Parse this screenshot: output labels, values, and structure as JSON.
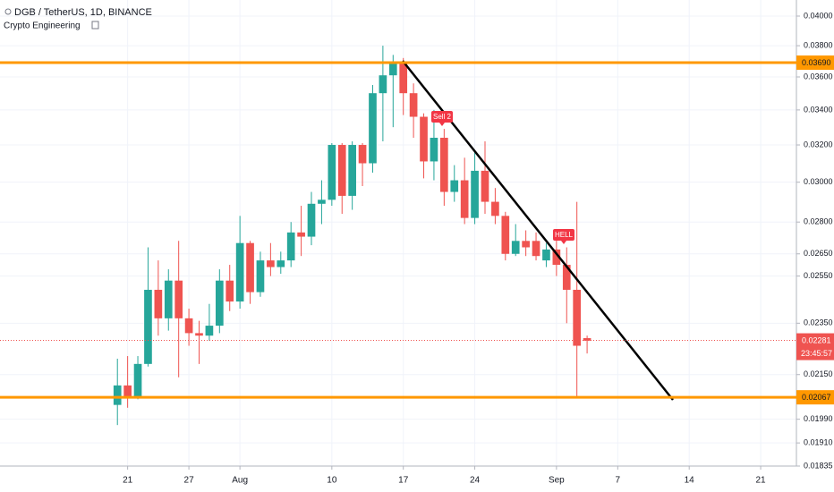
{
  "chart_data": {
    "type": "candlestick",
    "title": "DGB / TetherUS, 1D, BINANCE",
    "subtitle": "Crypto Engineering",
    "log_scale": true,
    "grid": true,
    "up_color": "#26a69a",
    "down_color": "#ef5350",
    "level_color": "#ff9800",
    "categories": [
      null,
      null,
      null,
      null,
      null,
      null,
      null,
      null,
      null,
      null,
      null,
      null,
      "21",
      null,
      null,
      null,
      null,
      null,
      "27",
      null,
      null,
      null,
      null,
      "Aug",
      null,
      null,
      null,
      null,
      null,
      null,
      null,
      null,
      "10",
      null,
      null,
      null,
      null,
      null,
      null,
      "17",
      null,
      null,
      null,
      null,
      null,
      null,
      "24",
      null,
      null,
      null,
      null,
      null,
      null,
      null,
      "Sep",
      null,
      null,
      null,
      null,
      null,
      "7",
      null,
      null,
      null,
      null,
      null,
      null,
      "14",
      null,
      null,
      null,
      null,
      null,
      null,
      "21",
      null,
      null,
      null
    ],
    "open": [
      null,
      null,
      null,
      null,
      null,
      null,
      null,
      null,
      null,
      null,
      null,
      0.0204,
      0.0211,
      0.0207,
      0.0219,
      0.0249,
      0.0237,
      0.0253,
      0.0237,
      0.0231,
      0.023,
      0.0234,
      0.0253,
      0.0244,
      0.027,
      0.0248,
      0.0262,
      0.0259,
      0.0262,
      0.0275,
      0.0273,
      0.0289,
      0.0291,
      0.032,
      0.0293,
      0.032,
      0.031,
      0.035,
      0.0361,
      0.0369,
      0.035,
      0.0336,
      0.0311,
      0.0324,
      0.0295,
      0.0301,
      0.0282,
      0.0306,
      0.029,
      0.0283,
      0.0265,
      0.0271,
      0.0271,
      0.0262,
      0.0267,
      0.026,
      0.0249,
      0.0229,
      null,
      null,
      null,
      null,
      null,
      null,
      null,
      null,
      null,
      null,
      null,
      null,
      null,
      null,
      null,
      null,
      null,
      null,
      null,
      null
    ],
    "high": [
      null,
      null,
      null,
      null,
      null,
      null,
      null,
      null,
      null,
      null,
      null,
      0.0221,
      0.0222,
      0.0222,
      0.0268,
      0.0262,
      0.0258,
      0.0271,
      0.0241,
      0.0236,
      0.0243,
      0.0258,
      0.026,
      0.0283,
      0.0271,
      0.0266,
      0.027,
      0.0266,
      0.028,
      0.0288,
      0.0295,
      0.0301,
      0.0321,
      0.0321,
      0.0322,
      0.0321,
      0.0355,
      0.038,
      0.0374,
      0.0372,
      0.0356,
      0.0338,
      0.034,
      0.0329,
      0.0309,
      0.0313,
      0.0316,
      0.0322,
      0.0297,
      0.0285,
      0.0279,
      0.0276,
      0.0275,
      0.027,
      0.0272,
      0.0268,
      0.029,
      0.023,
      null,
      null,
      null,
      null,
      null,
      null,
      null,
      null,
      null,
      null,
      null,
      null,
      null,
      null,
      null,
      null,
      null,
      null,
      null,
      null
    ],
    "low": [
      null,
      null,
      null,
      null,
      null,
      null,
      null,
      null,
      null,
      null,
      null,
      0.0197,
      0.0203,
      0.0206,
      0.0218,
      0.023,
      0.0232,
      0.0214,
      0.0226,
      0.0219,
      0.0228,
      0.0231,
      0.024,
      0.0241,
      0.0243,
      0.0246,
      0.0255,
      0.0256,
      0.0259,
      0.0264,
      0.0269,
      0.0279,
      0.0288,
      0.0284,
      0.0286,
      0.0298,
      0.0305,
      0.0322,
      0.033,
      0.0337,
      0.0324,
      0.0302,
      0.0301,
      0.0288,
      0.029,
      0.0279,
      0.0279,
      0.0284,
      0.0279,
      0.0262,
      0.0264,
      0.0264,
      0.0262,
      0.0259,
      0.0255,
      0.0235,
      0.0207,
      0.0223,
      null,
      null,
      null,
      null,
      null,
      null,
      null,
      null,
      null,
      null,
      null,
      null,
      null,
      null,
      null,
      null,
      null,
      null,
      null,
      null
    ],
    "close": [
      null,
      null,
      null,
      null,
      null,
      null,
      null,
      null,
      null,
      null,
      null,
      0.0211,
      0.0207,
      0.0219,
      0.0249,
      0.0237,
      0.0253,
      0.0237,
      0.0231,
      0.023,
      0.0234,
      0.0253,
      0.0244,
      0.027,
      0.0248,
      0.0262,
      0.0259,
      0.0262,
      0.0275,
      0.0273,
      0.0289,
      0.0291,
      0.032,
      0.0293,
      0.032,
      0.031,
      0.035,
      0.0361,
      0.0369,
      0.035,
      0.0336,
      0.0311,
      0.0324,
      0.0295,
      0.0301,
      0.0282,
      0.0306,
      0.029,
      0.0283,
      0.0265,
      0.0271,
      0.0268,
      0.0264,
      0.0267,
      0.026,
      0.0249,
      0.0226,
      0.0228,
      null,
      null,
      null,
      null,
      null,
      null,
      null,
      null,
      null,
      null,
      null,
      null,
      null,
      null,
      null,
      null,
      null,
      null,
      null,
      null
    ],
    "ylim": [
      0.01835,
      0.04113
    ],
    "yticks": [
      {
        "value": 0.04,
        "label": "0.04000"
      },
      {
        "value": 0.038,
        "label": "0.03800"
      },
      {
        "value": 0.036,
        "label": "0.03600"
      },
      {
        "value": 0.034,
        "label": "0.03400"
      },
      {
        "value": 0.032,
        "label": "0.03200"
      },
      {
        "value": 0.03,
        "label": "0.03000"
      },
      {
        "value": 0.028,
        "label": "0.02800"
      },
      {
        "value": 0.0265,
        "label": "0.02650"
      },
      {
        "value": 0.0255,
        "label": "0.02550"
      },
      {
        "value": 0.0235,
        "label": "0.02350"
      },
      {
        "value": 0.0215,
        "label": "0.02150"
      },
      {
        "value": 0.0199,
        "label": "0.01990"
      },
      {
        "value": 0.0191,
        "label": "0.01910"
      },
      {
        "value": 0.01835,
        "label": "0.01835"
      }
    ],
    "levels": [
      {
        "value": 0.0369,
        "label": "0.03690"
      },
      {
        "value": 0.02067,
        "label": "0.02067"
      }
    ],
    "last_price": 0.02281,
    "countdown": "23:45:57",
    "annotations": [
      "Sell 2",
      "HELL"
    ]
  }
}
